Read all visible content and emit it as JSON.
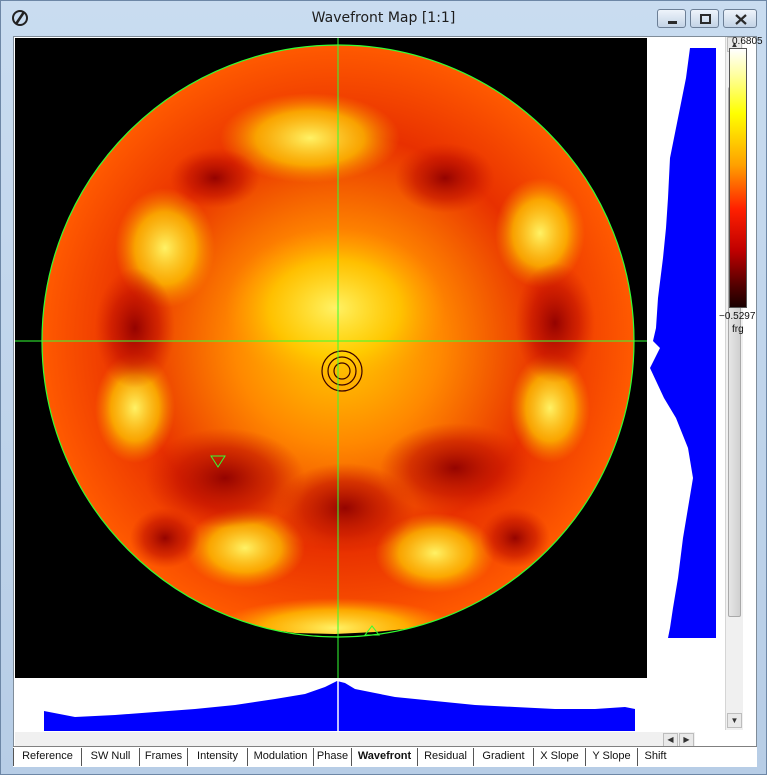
{
  "window": {
    "title": "Wavefront Map [1:1]"
  },
  "colorbar": {
    "max_label": "0.6805",
    "min_label": "−0.5297",
    "unit": "frg",
    "colors": [
      "#ffffff",
      "#ffff00",
      "#ffa000",
      "#ff2000",
      "#c00000",
      "#1a0000"
    ]
  },
  "tabs": [
    {
      "label": "Reference"
    },
    {
      "label": "SW Null"
    },
    {
      "label": "Frames"
    },
    {
      "label": "Intensity"
    },
    {
      "label": "Modulation"
    },
    {
      "label": "Phase"
    },
    {
      "label": "Wavefront"
    },
    {
      "label": "Residual"
    },
    {
      "label": "Gradient"
    },
    {
      "label": "X Slope"
    },
    {
      "label": "Y Slope"
    },
    {
      "label": "Shift"
    }
  ],
  "active_tab": "Wavefront",
  "colors": {
    "aperture_outline": "#33ff33",
    "crosshair": "#33ff33",
    "profile": "#0000ff",
    "background": "#000000"
  }
}
